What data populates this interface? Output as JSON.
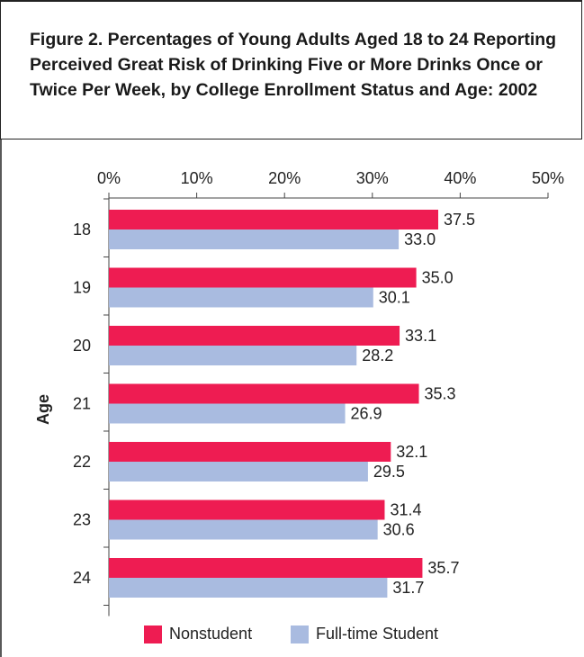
{
  "title": "Figure 2. Percentages of Young Adults Aged 18 to 24 Reporting Perceived Great Risk of Drinking Five or More Drinks Once or Twice Per Week, by College Enrollment Status and Age: 2002",
  "colors": {
    "nonstudent": "#ee1c52",
    "student": "#a9bbe0"
  },
  "chart_data": {
    "type": "bar",
    "orientation": "horizontal",
    "categories": [
      "18",
      "19",
      "20",
      "21",
      "22",
      "23",
      "24"
    ],
    "series": [
      {
        "name": "Nonstudent",
        "values": [
          37.5,
          35.0,
          33.1,
          35.3,
          32.1,
          31.4,
          35.7
        ],
        "labels": [
          "37.5",
          "35.0",
          "33.1",
          "35.3",
          "32.1",
          "31.4",
          "35.7"
        ]
      },
      {
        "name": "Full-time Student",
        "values": [
          33.0,
          30.1,
          28.2,
          26.9,
          29.5,
          30.6,
          31.7
        ],
        "labels": [
          "33.0",
          "30.1",
          "28.2",
          "26.9",
          "29.5",
          "30.6",
          "31.7"
        ]
      }
    ],
    "xlim": [
      0,
      50
    ],
    "xticks": [
      0,
      10,
      20,
      30,
      40,
      50
    ],
    "xtick_labels": [
      "0%",
      "10%",
      "20%",
      "30%",
      "40%",
      "50%"
    ],
    "xaxis_position": "top",
    "ylabel": "Age",
    "xlabel": "",
    "grid": false,
    "legend_position": "bottom"
  }
}
